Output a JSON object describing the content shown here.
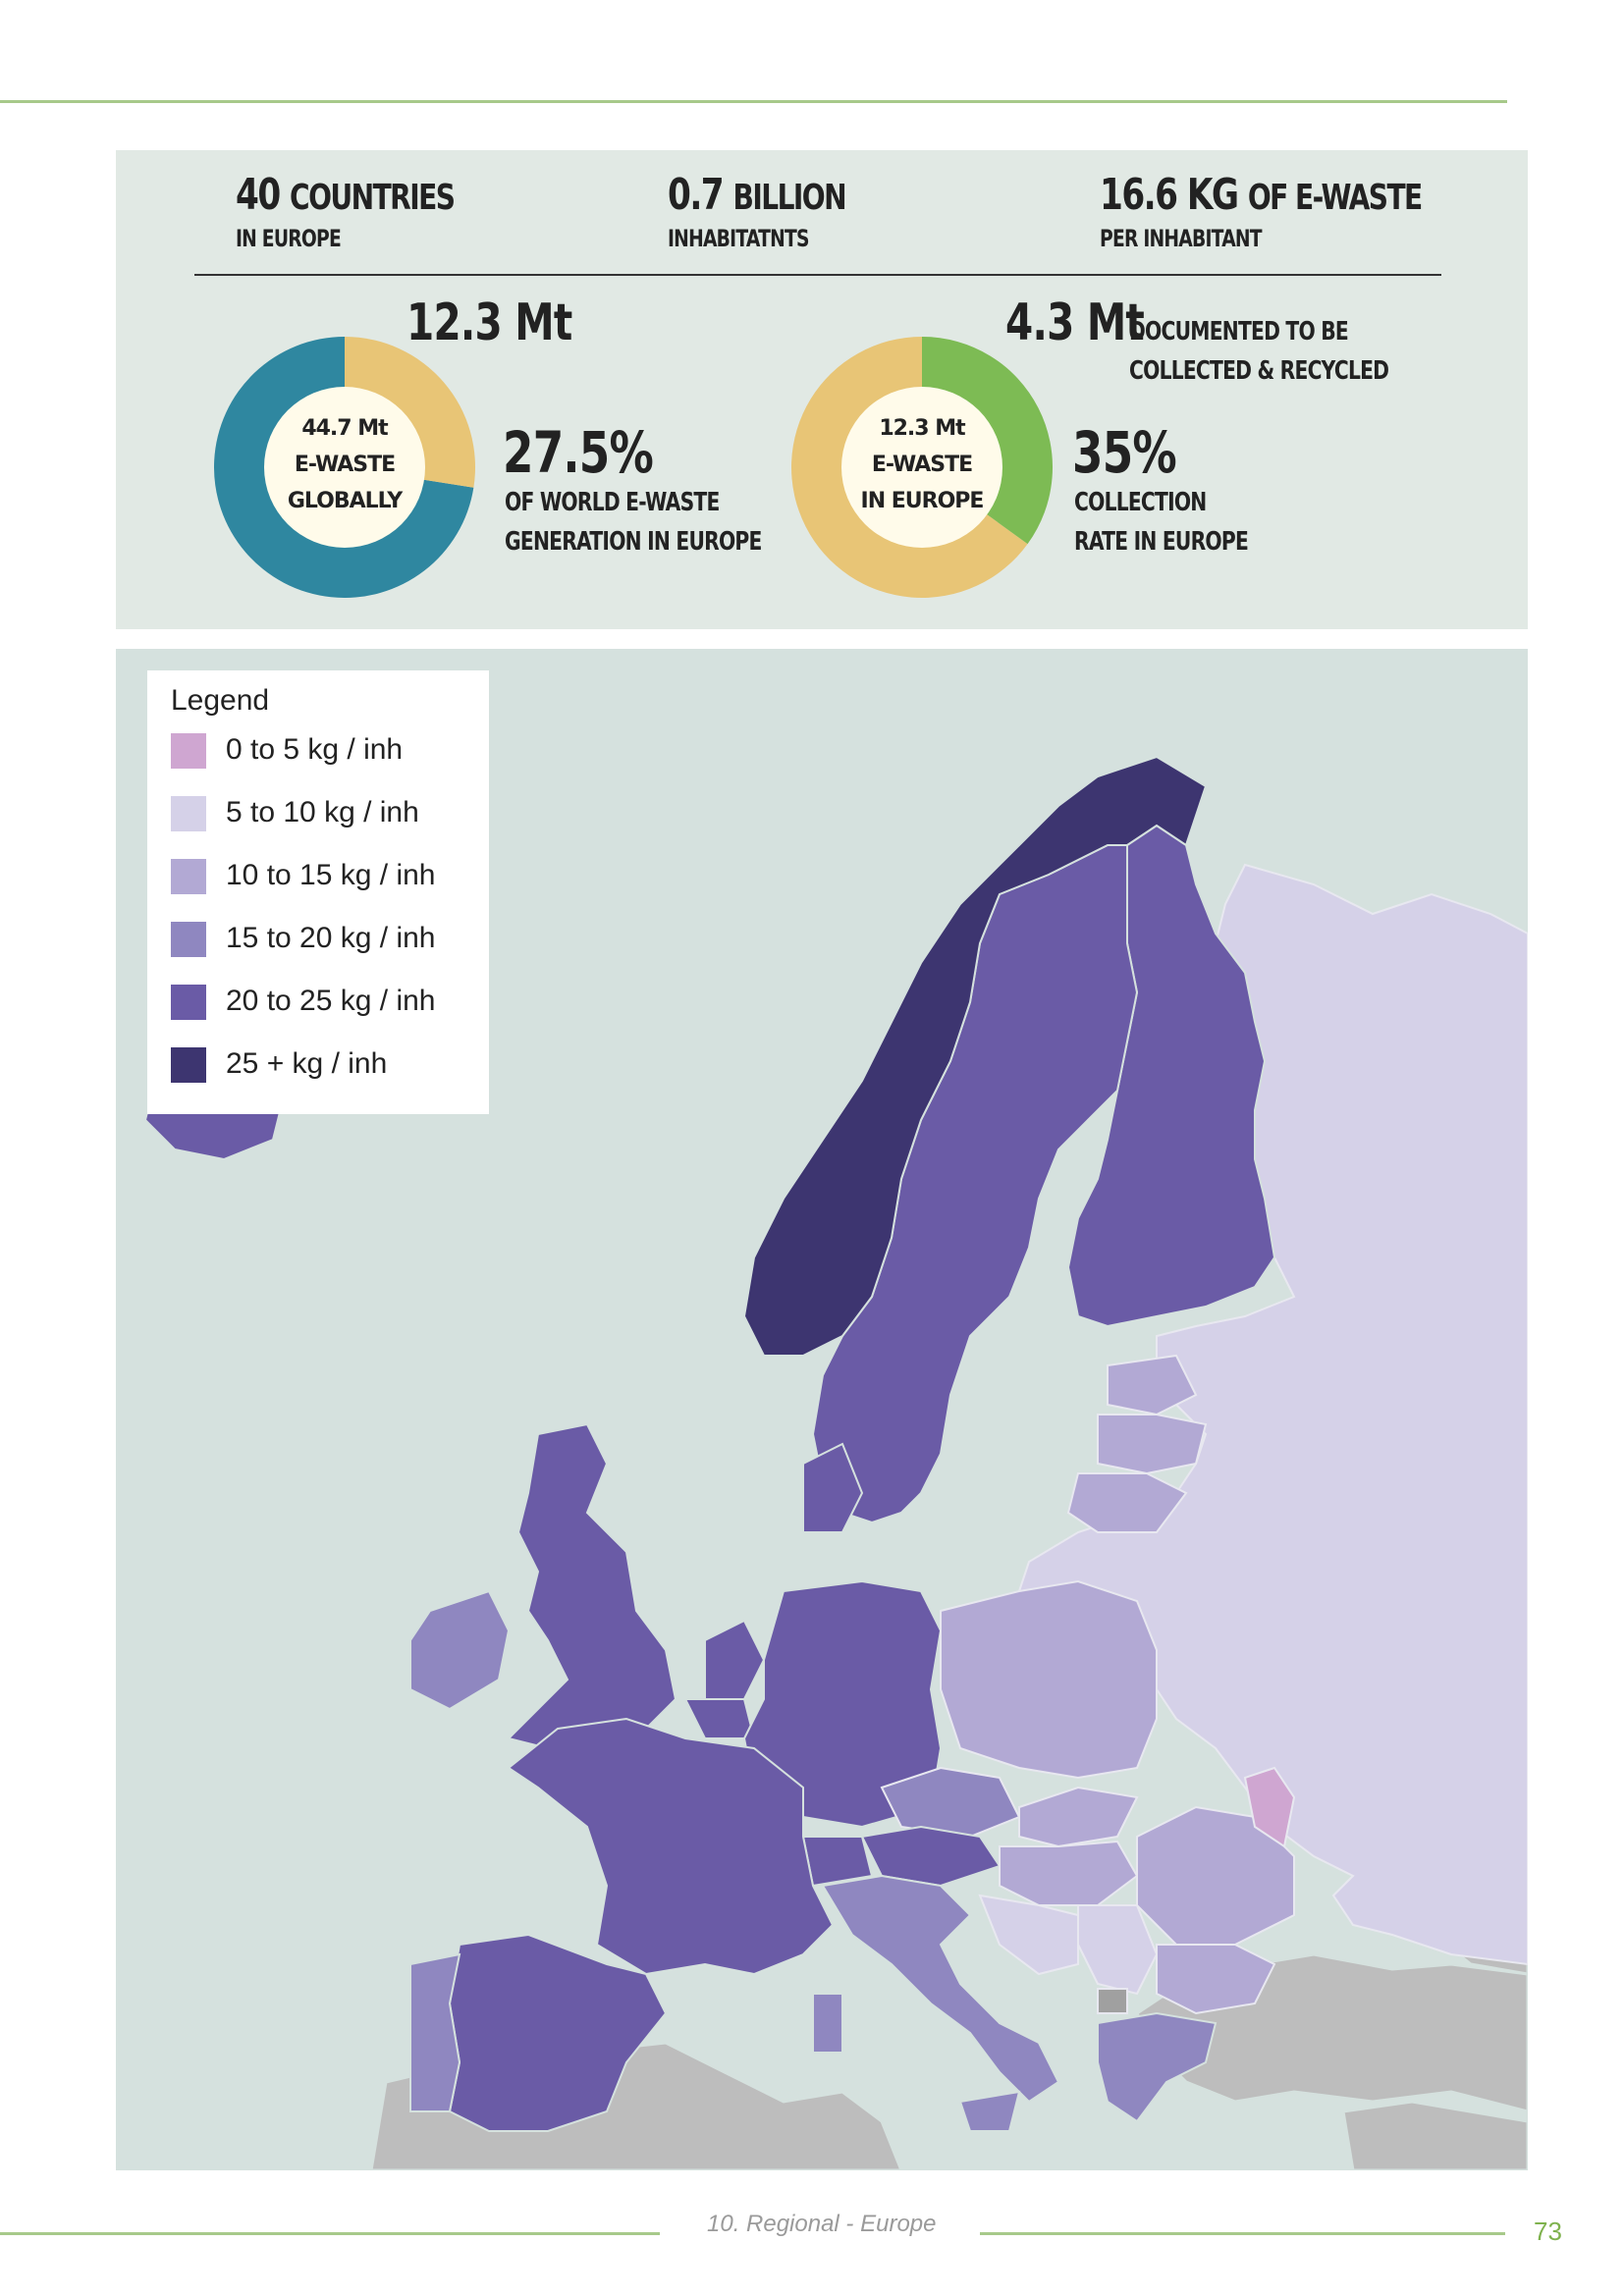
{
  "stats": {
    "countries": {
      "value": "40",
      "unit": "COUNTRIES",
      "sub": "IN EUROPE"
    },
    "inhabitants": {
      "value": "0.7",
      "unit": "BILLION",
      "sub": "INHABITATNTS"
    },
    "per_inhabitant": {
      "value": "16.6 KG",
      "unit": "OF E-WASTE",
      "sub": "PER INHABITANT"
    }
  },
  "generation": {
    "headline": "12.3 Mt",
    "donut_center": [
      "44.7 Mt",
      "E-WASTE",
      "GLOBALLY"
    ],
    "percent": "27.5%",
    "desc": [
      "OF WORLD E-WASTE",
      "GENERATION IN EUROPE"
    ],
    "share": 0.275,
    "colors": {
      "part": "#e8c576",
      "rest": "#2f87a0"
    }
  },
  "collection": {
    "headline": "4.3 Mt",
    "headline_desc": [
      "DOCUMENTED TO BE",
      "COLLECTED & RECYCLED"
    ],
    "donut_center": [
      "12.3 Mt",
      "E-WASTE",
      "IN EUROPE"
    ],
    "percent": "35%",
    "desc": [
      "COLLECTION",
      "RATE IN EUROPE"
    ],
    "share": 0.35,
    "colors": {
      "part": "#7dbb54",
      "rest": "#e8c576"
    }
  },
  "legend": {
    "title": "Legend",
    "items": [
      {
        "label": "0 to 5 kg / inh",
        "color": "#cfa6d1"
      },
      {
        "label": "5 to 10 kg / inh",
        "color": "#d5d1e8"
      },
      {
        "label": "10 to 15 kg / inh",
        "color": "#b2a9d4"
      },
      {
        "label": "15 to 20 kg / inh",
        "color": "#8f87c0"
      },
      {
        "label": "20 to 25 kg / inh",
        "color": "#6a5ba6"
      },
      {
        "label": "25 + kg / inh",
        "color": "#3d3570"
      }
    ]
  },
  "footer": {
    "section": "10. Regional - Europe",
    "page": "73"
  }
}
